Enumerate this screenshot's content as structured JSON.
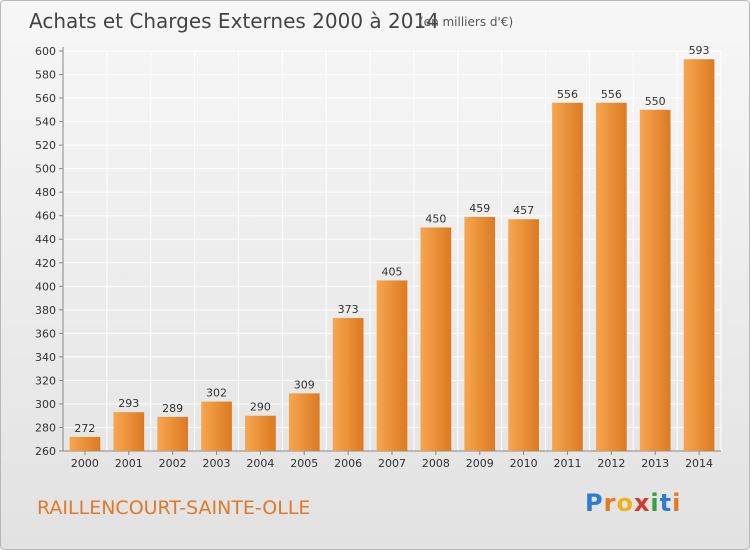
{
  "header": {
    "title": "Achats et Charges Externes 2000 à 2014",
    "unit": "(en milliers d'€)"
  },
  "footer": {
    "commune": "RAILLENCOURT-SAINTE-OLLE",
    "brand": "Proxiti",
    "brand_letters": [
      "P",
      "r",
      "o",
      "x",
      "i",
      "t",
      "i"
    ],
    "brand_colors": [
      "#2e7bd6",
      "#e8781f",
      "#f0b21a",
      "#d23a2c",
      "#35a03c",
      "#2e7bd6",
      "#e8781f"
    ]
  },
  "chart_data": {
    "type": "bar",
    "title": "Achats et Charges Externes 2000 à 2014",
    "subtitle": "(en milliers d'€)",
    "xlabel": "",
    "ylabel": "",
    "categories": [
      "2000",
      "2001",
      "2002",
      "2003",
      "2004",
      "2005",
      "2006",
      "2007",
      "2008",
      "2009",
      "2010",
      "2011",
      "2012",
      "2013",
      "2014"
    ],
    "values": [
      272,
      293,
      289,
      302,
      290,
      309,
      373,
      405,
      450,
      459,
      457,
      556,
      556,
      550,
      593
    ],
    "ylim": [
      260,
      600
    ],
    "yticks": [
      260,
      280,
      300,
      320,
      340,
      360,
      380,
      400,
      420,
      440,
      460,
      480,
      500,
      520,
      540,
      560,
      580,
      600
    ],
    "grid": true,
    "legend": "none",
    "colors": {
      "bar_light": "#f7a650",
      "bar_dark": "#dc7a22",
      "grid": "#ffffff"
    }
  }
}
